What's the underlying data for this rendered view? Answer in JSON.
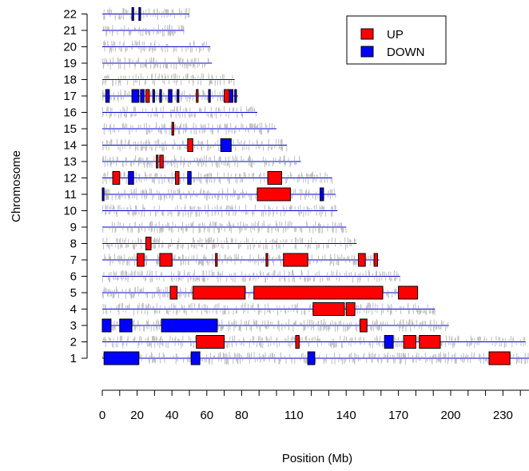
{
  "chart_data": {
    "type": "genome-region-plot",
    "xlabel": "Position (Mb)",
    "ylabel": "Chromosome",
    "x_ticks": [
      0,
      20,
      40,
      60,
      80,
      110,
      140,
      170,
      200,
      230
    ],
    "xlim": [
      0,
      246
    ],
    "chromosomes": [
      "1",
      "2",
      "3",
      "4",
      "5",
      "6",
      "7",
      "8",
      "9",
      "10",
      "11",
      "12",
      "13",
      "14",
      "15",
      "16",
      "17",
      "18",
      "19",
      "20",
      "21",
      "22"
    ],
    "chromosome_lengths_mb": {
      "1": 245,
      "2": 243,
      "3": 199,
      "4": 191,
      "5": 181,
      "6": 171,
      "7": 159,
      "8": 146,
      "9": 140,
      "10": 135,
      "11": 134,
      "12": 132,
      "13": 114,
      "14": 106,
      "15": 100,
      "16": 89,
      "17": 78,
      "18": 76,
      "19": 63,
      "20": 62,
      "21": 47,
      "22": 50
    },
    "legend": [
      {
        "label": "UP",
        "color": "#ff0000"
      },
      {
        "label": "DOWN",
        "color": "#0000ff"
      }
    ],
    "legend_position": "top-right",
    "colors": {
      "up": "#ff0000",
      "down": "#0000ff",
      "probe": "#bebebe",
      "chromosome_line": "#0000cc"
    },
    "regions": [
      {
        "chr": "1",
        "start": 1,
        "end": 21,
        "dir": "DOWN"
      },
      {
        "chr": "1",
        "start": 51,
        "end": 56,
        "dir": "DOWN"
      },
      {
        "chr": "1",
        "start": 118,
        "end": 122,
        "dir": "DOWN"
      },
      {
        "chr": "1",
        "start": 222,
        "end": 234,
        "dir": "UP"
      },
      {
        "chr": "2",
        "start": 54,
        "end": 70,
        "dir": "UP"
      },
      {
        "chr": "2",
        "start": 111,
        "end": 113,
        "dir": "UP"
      },
      {
        "chr": "2",
        "start": 162,
        "end": 167,
        "dir": "DOWN"
      },
      {
        "chr": "2",
        "start": 173,
        "end": 180,
        "dir": "UP"
      },
      {
        "chr": "2",
        "start": 182,
        "end": 194,
        "dir": "UP"
      },
      {
        "chr": "3",
        "start": 0,
        "end": 5,
        "dir": "DOWN"
      },
      {
        "chr": "3",
        "start": 10,
        "end": 17,
        "dir": "DOWN"
      },
      {
        "chr": "3",
        "start": 34,
        "end": 66,
        "dir": "DOWN"
      },
      {
        "chr": "3",
        "start": 148,
        "end": 152,
        "dir": "UP"
      },
      {
        "chr": "4",
        "start": 121,
        "end": 139,
        "dir": "UP"
      },
      {
        "chr": "4",
        "start": 140,
        "end": 145,
        "dir": "UP"
      },
      {
        "chr": "5",
        "start": 39,
        "end": 43,
        "dir": "UP"
      },
      {
        "chr": "5",
        "start": 52,
        "end": 82,
        "dir": "UP"
      },
      {
        "chr": "5",
        "start": 87,
        "end": 161,
        "dir": "UP"
      },
      {
        "chr": "5",
        "start": 170,
        "end": 181,
        "dir": "UP"
      },
      {
        "chr": "7",
        "start": 20,
        "end": 24,
        "dir": "UP"
      },
      {
        "chr": "7",
        "start": 33,
        "end": 40,
        "dir": "UP"
      },
      {
        "chr": "7",
        "start": 65,
        "end": 66,
        "dir": "UP"
      },
      {
        "chr": "7",
        "start": 94,
        "end": 95,
        "dir": "UP"
      },
      {
        "chr": "7",
        "start": 104,
        "end": 118,
        "dir": "UP"
      },
      {
        "chr": "7",
        "start": 147,
        "end": 151,
        "dir": "UP"
      },
      {
        "chr": "7",
        "start": 156,
        "end": 158,
        "dir": "UP"
      },
      {
        "chr": "8",
        "start": 25,
        "end": 28,
        "dir": "UP"
      },
      {
        "chr": "11",
        "start": 0,
        "end": 1,
        "dir": "DOWN"
      },
      {
        "chr": "11",
        "start": 89,
        "end": 108,
        "dir": "UP"
      },
      {
        "chr": "11",
        "start": 125,
        "end": 127,
        "dir": "DOWN"
      },
      {
        "chr": "12",
        "start": 6,
        "end": 10,
        "dir": "UP"
      },
      {
        "chr": "12",
        "start": 15,
        "end": 18,
        "dir": "DOWN"
      },
      {
        "chr": "12",
        "start": 42,
        "end": 44,
        "dir": "UP"
      },
      {
        "chr": "12",
        "start": 49,
        "end": 51,
        "dir": "DOWN"
      },
      {
        "chr": "12",
        "start": 95,
        "end": 103,
        "dir": "UP"
      },
      {
        "chr": "13",
        "start": 31,
        "end": 32,
        "dir": "UP"
      },
      {
        "chr": "13",
        "start": 33,
        "end": 35,
        "dir": "UP"
      },
      {
        "chr": "14",
        "start": 49,
        "end": 52,
        "dir": "UP"
      },
      {
        "chr": "14",
        "start": 68,
        "end": 74,
        "dir": "DOWN"
      },
      {
        "chr": "15",
        "start": 40,
        "end": 41,
        "dir": "UP"
      },
      {
        "chr": "17",
        "start": 2,
        "end": 4,
        "dir": "DOWN"
      },
      {
        "chr": "17",
        "start": 17,
        "end": 21,
        "dir": "DOWN"
      },
      {
        "chr": "17",
        "start": 22,
        "end": 24,
        "dir": "DOWN"
      },
      {
        "chr": "17",
        "start": 25,
        "end": 27,
        "dir": "UP"
      },
      {
        "chr": "17",
        "start": 29,
        "end": 30,
        "dir": "DOWN"
      },
      {
        "chr": "17",
        "start": 33,
        "end": 34,
        "dir": "DOWN"
      },
      {
        "chr": "17",
        "start": 38,
        "end": 40,
        "dir": "DOWN"
      },
      {
        "chr": "17",
        "start": 43,
        "end": 44,
        "dir": "DOWN"
      },
      {
        "chr": "17",
        "start": 54,
        "end": 55,
        "dir": "UP"
      },
      {
        "chr": "17",
        "start": 61,
        "end": 62,
        "dir": "DOWN"
      },
      {
        "chr": "17",
        "start": 70,
        "end": 73,
        "dir": "UP"
      },
      {
        "chr": "17",
        "start": 73,
        "end": 75,
        "dir": "DOWN"
      },
      {
        "chr": "17",
        "start": 76,
        "end": 77,
        "dir": "DOWN"
      },
      {
        "chr": "22",
        "start": 17,
        "end": 18,
        "dir": "DOWN"
      },
      {
        "chr": "22",
        "start": 21,
        "end": 22,
        "dir": "DOWN"
      }
    ]
  }
}
